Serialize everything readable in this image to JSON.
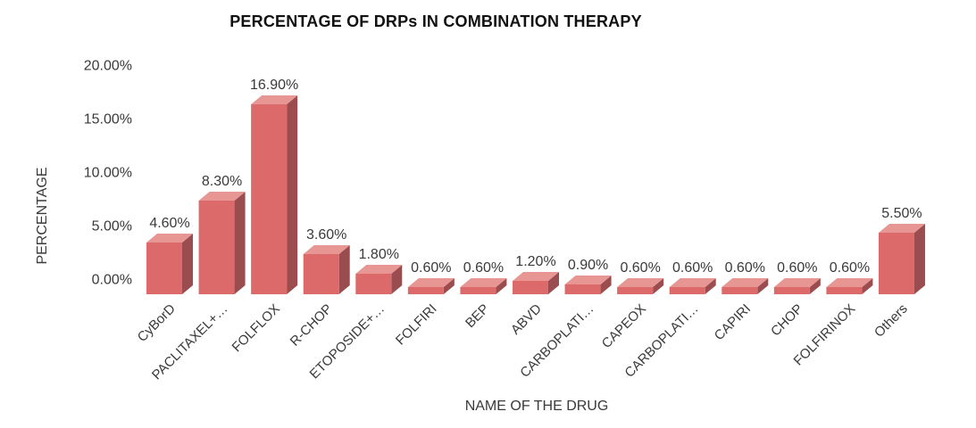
{
  "chart_data": {
    "type": "bar",
    "bar_style": "3d-box",
    "title": "PERCENTAGE OF DRPs IN COMBINATION THERAPY",
    "xlabel": "NAME OF THE DRUG",
    "ylabel": "PERCENTAGE",
    "categories": [
      "CyBorD",
      "PACLITAXEL+…",
      "FOLFLOX",
      "R-CHOP",
      "ETOPOSIDE+…",
      "FOLFIRI",
      "BEP",
      "ABVD",
      "CARBOPLATI…",
      "CAPEOX",
      "CARBOPLATI…",
      "CAPIRI",
      "CHOP",
      "FOLFIRINOX",
      "Others"
    ],
    "values": [
      4.6,
      8.3,
      16.9,
      3.6,
      1.8,
      0.6,
      0.6,
      1.2,
      0.9,
      0.6,
      0.6,
      0.6,
      0.6,
      0.6,
      5.5
    ],
    "value_labels": [
      "4.60%",
      "8.30%",
      "16.90%",
      "3.60%",
      "1.80%",
      "0.60%",
      "0.60%",
      "1.20%",
      "0.90%",
      "0.60%",
      "0.60%",
      "0.60%",
      "0.60%",
      "0.60%",
      "5.50%"
    ],
    "ytick_labels": [
      "20.00%",
      "15.00%",
      "10.00%",
      "5.00%",
      "0.00%"
    ],
    "ytick_values": [
      20,
      15,
      10,
      5,
      0
    ],
    "ylim": [
      0,
      20
    ],
    "grid": false,
    "legend": false,
    "colors": {
      "bar_front": "#DC6A6B",
      "bar_top": "#E89693",
      "bar_side": "#9B4C4F",
      "label_text": "#3a3a3a",
      "title_text": "#111111",
      "background": "#FFFFFF"
    }
  }
}
